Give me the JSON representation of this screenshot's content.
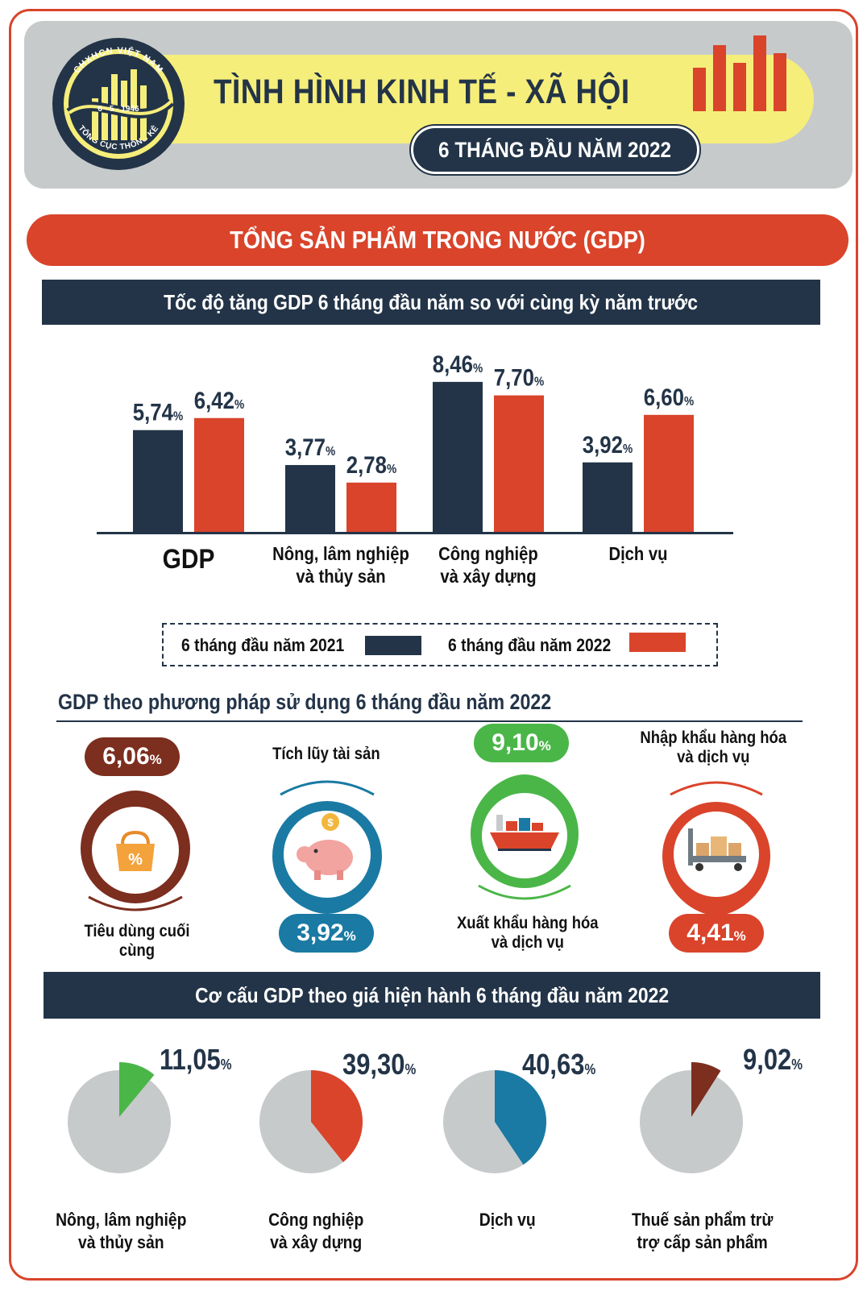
{
  "header": {
    "title": "TÌNH HÌNH KINH TẾ - XÃ HỘI",
    "period": "6 THÁNG ĐẦU NĂM 2022",
    "logo_text_top": "CHXHCN VIỆT NAM",
    "logo_text_date": "6 - 5 - 1946",
    "logo_text_bottom": "TỔNG CỤC THỐNG KÊ"
  },
  "section_title": "TỔNG SẢN PHẨM TRONG NƯỚC (GDP)",
  "colors": {
    "navy": "#233448",
    "red": "#d9442b",
    "green": "#4ab648",
    "blue": "#1a7aa3",
    "brown": "#7c2e1f",
    "grey": "#c7cacb"
  },
  "chart_data": [
    {
      "type": "bar",
      "title": "Tốc độ tăng GDP 6 tháng đầu năm so với cùng kỳ năm trước",
      "categories": [
        "GDP",
        "Nông, lâm nghiệp\nvà thủy sản",
        "Công nghiệp\nvà xây dựng",
        "Dịch vụ"
      ],
      "series": [
        {
          "name": "6 tháng đầu năm 2021",
          "values": [
            5.74,
            3.77,
            8.46,
            3.92
          ],
          "labels": [
            "5,74",
            "3,77",
            "8,46",
            "3,92"
          ]
        },
        {
          "name": "6 tháng đầu năm 2022",
          "values": [
            6.42,
            2.78,
            7.7,
            6.6
          ],
          "labels": [
            "6,42",
            "2,78",
            "7,70",
            "6,60"
          ]
        }
      ],
      "unit": "%",
      "ylim": [
        0,
        9
      ],
      "legend": "bottom"
    },
    {
      "type": "pie",
      "title": "Cơ cấu GDP theo giá hiện hành 6 tháng đầu năm 2022",
      "slices": [
        {
          "label": "Nông, lâm nghiệp\nvà thủy sản",
          "value": 11.05,
          "text": "11,05",
          "color": "#4ab648"
        },
        {
          "label": "Công nghiệp\nvà xây dựng",
          "value": 39.3,
          "text": "39,30",
          "color": "#d9442b"
        },
        {
          "label": "Dịch vụ",
          "value": 40.63,
          "text": "40,63",
          "color": "#1a7aa3"
        },
        {
          "label": "Thuế sản phẩm trừ\ntrợ cấp sản phẩm",
          "value": 9.02,
          "text": "9,02",
          "color": "#7c2e1f"
        }
      ],
      "unit": "%"
    }
  ],
  "usage": {
    "title": "GDP theo phương pháp sử dụng 6 tháng đầu năm 2022",
    "unit": "%",
    "items": [
      {
        "label": "Tiêu dùng cuối cùng",
        "value": "6,06",
        "color": "#7c2e1f",
        "icon": "shopping-bag-icon"
      },
      {
        "label": "Tích lũy tài sản",
        "value": "3,92",
        "color": "#1a7aa3",
        "icon": "piggy-bank-icon"
      },
      {
        "label": "Xuất khẩu hàng hóa\nvà dịch vụ",
        "value": "9,10",
        "color": "#4ab648",
        "icon": "cargo-ship-icon"
      },
      {
        "label": "Nhập khẩu hàng hóa\nvà dịch vụ",
        "value": "4,41",
        "color": "#d9442b",
        "icon": "forklift-boxes-icon"
      }
    ]
  }
}
